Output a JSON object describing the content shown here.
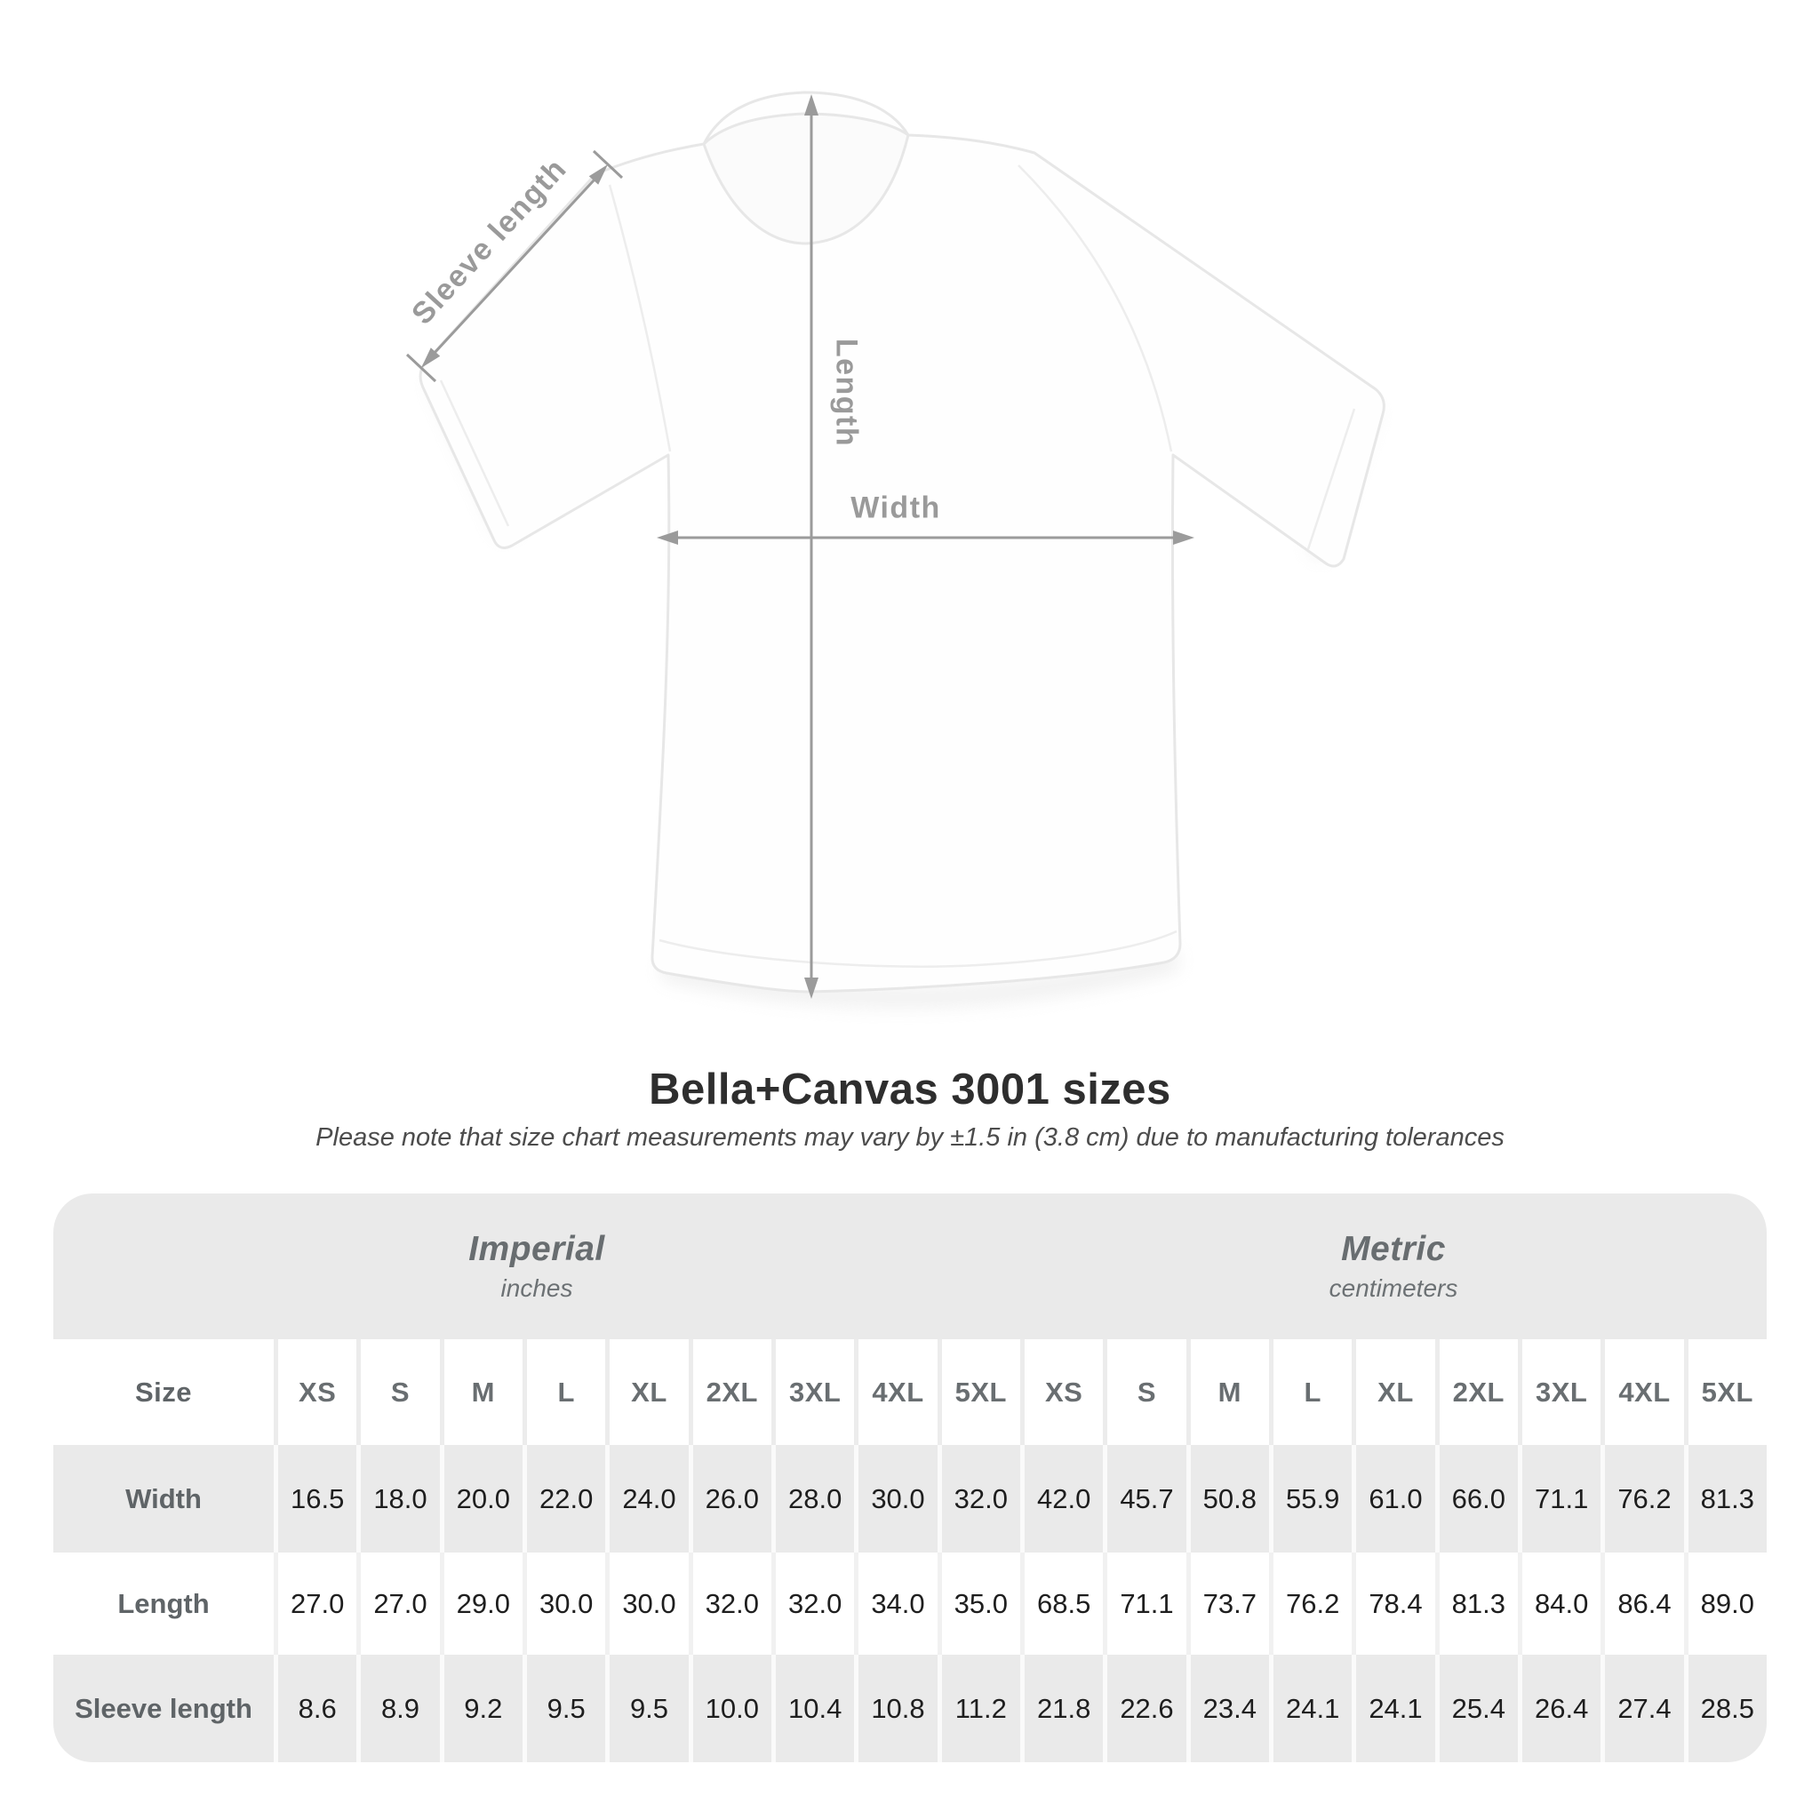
{
  "diagram": {
    "sleeve_label": "Sleeve length",
    "length_label": "Length",
    "width_label": "Width"
  },
  "title": "Bella+Canvas 3001 sizes",
  "subtitle": "Please note that size chart measurements may vary by ±1.5 in (3.8 cm) due to manufacturing tolerances",
  "colors": {
    "arrow_gray": "#9b9b9b",
    "label_gray": "#9a9a9a",
    "band_gray": "#eaeaea",
    "header_text": "#696e71",
    "value_text": "#1e1e1e",
    "shirt_outline": "#e7e7e7"
  },
  "chart_data": {
    "type": "table",
    "title": "Bella+Canvas 3001 sizes",
    "sections": [
      {
        "name": "Imperial",
        "unit": "inches"
      },
      {
        "name": "Metric",
        "unit": "centimeters"
      }
    ],
    "size_label": "Size",
    "col_headers": [
      "XS",
      "S",
      "M",
      "L",
      "XL",
      "2XL",
      "3XL",
      "4XL",
      "5XL",
      "XS",
      "S",
      "M",
      "L",
      "XL",
      "2XL",
      "3XL",
      "4XL",
      "5XL"
    ],
    "rows": [
      {
        "label": "Width",
        "values": [
          "16.5",
          "18.0",
          "20.0",
          "22.0",
          "24.0",
          "26.0",
          "28.0",
          "30.0",
          "32.0",
          "42.0",
          "45.7",
          "50.8",
          "55.9",
          "61.0",
          "66.0",
          "71.1",
          "76.2",
          "81.3"
        ]
      },
      {
        "label": "Length",
        "values": [
          "27.0",
          "27.0",
          "29.0",
          "30.0",
          "30.0",
          "32.0",
          "32.0",
          "34.0",
          "35.0",
          "68.5",
          "71.1",
          "73.7",
          "76.2",
          "78.4",
          "81.3",
          "84.0",
          "86.4",
          "89.0"
        ]
      },
      {
        "label": "Sleeve length",
        "values": [
          "8.6",
          "8.9",
          "9.2",
          "9.5",
          "9.5",
          "10.0",
          "10.4",
          "10.8",
          "11.2",
          "21.8",
          "22.6",
          "23.4",
          "24.1",
          "24.1",
          "25.4",
          "26.4",
          "27.4",
          "28.5"
        ]
      }
    ]
  }
}
